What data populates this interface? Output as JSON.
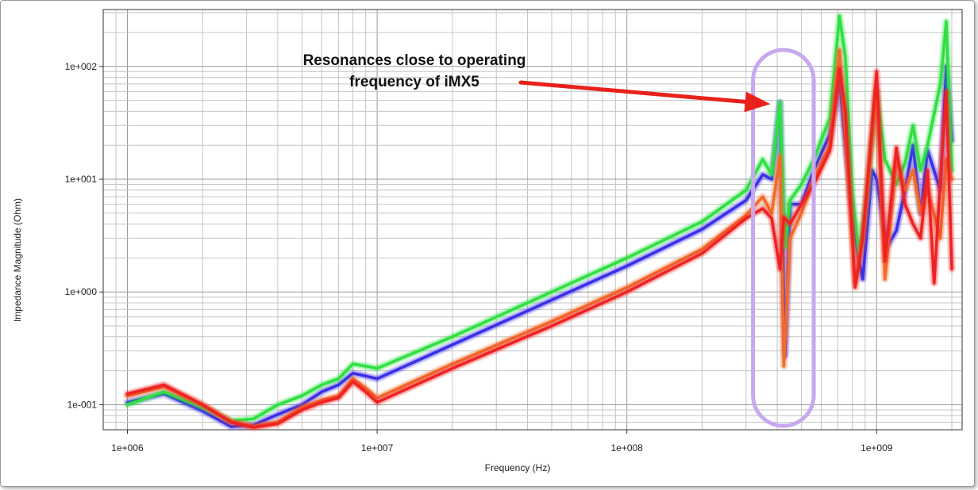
{
  "chart_data": {
    "type": "line",
    "title": "",
    "xlabel": "Frequency (Hz)",
    "ylabel": "Impedance Magnitude (Ohm)",
    "xscale": "log",
    "yscale": "log",
    "xlim": [
      800000,
      2200000000
    ],
    "ylim": [
      0.06,
      320
    ],
    "grid": true,
    "x_ticks": [
      {
        "value": 1000000,
        "label": "1e+006"
      },
      {
        "value": 10000000,
        "label": "1e+007"
      },
      {
        "value": 100000000,
        "label": "1e+008"
      },
      {
        "value": 1000000000,
        "label": "1e+009"
      }
    ],
    "y_ticks": [
      {
        "value": 0.1,
        "label": "1e-001"
      },
      {
        "value": 1,
        "label": "1e+000"
      },
      {
        "value": 10,
        "label": "1e+001"
      },
      {
        "value": 100,
        "label": "1e+002"
      }
    ],
    "annotation": {
      "lines": [
        "Resonances close to operating",
        "frequency of iMX5"
      ],
      "target": {
        "x": 410000000,
        "y": 48
      },
      "highlight_x": [
        320000000,
        560000000
      ],
      "highlight_y": [
        0.065,
        140
      ],
      "arrow_color": "#e8211b",
      "highlight_color": "#c8a8ee"
    },
    "series": [
      {
        "color": "#3a2fe8",
        "points": [
          [
            1000000,
            0.105
          ],
          [
            1400000,
            0.125
          ],
          [
            2000000,
            0.088
          ],
          [
            2600000,
            0.064
          ],
          [
            3200000,
            0.066
          ],
          [
            4000000,
            0.082
          ],
          [
            5000000,
            0.1
          ],
          [
            6000000,
            0.13
          ],
          [
            7000000,
            0.15
          ],
          [
            8000000,
            0.19
          ],
          [
            9000000,
            0.18
          ],
          [
            10000000,
            0.17
          ],
          [
            20000000,
            0.34
          ],
          [
            50000000,
            0.85
          ],
          [
            100000000,
            1.7
          ],
          [
            200000000,
            3.6
          ],
          [
            300000000,
            6.5
          ],
          [
            350000000,
            11
          ],
          [
            380000000,
            10
          ],
          [
            410000000,
            48
          ],
          [
            430000000,
            0.27
          ],
          [
            450000000,
            6
          ],
          [
            500000000,
            6
          ],
          [
            560000000,
            12
          ],
          [
            650000000,
            25
          ],
          [
            710000000,
            75
          ],
          [
            750000000,
            20
          ],
          [
            820000000,
            3
          ],
          [
            880000000,
            1.3
          ],
          [
            960000000,
            12
          ],
          [
            1000000000,
            10
          ],
          [
            1100000000,
            2.5
          ],
          [
            1200000000,
            3.5
          ],
          [
            1300000000,
            8
          ],
          [
            1400000000,
            20
          ],
          [
            1500000000,
            5
          ],
          [
            1600000000,
            18
          ],
          [
            1800000000,
            8
          ],
          [
            1900000000,
            100
          ],
          [
            2000000000,
            22
          ]
        ]
      },
      {
        "color": "#2fe043",
        "points": [
          [
            1000000,
            0.1
          ],
          [
            1400000,
            0.13
          ],
          [
            2000000,
            0.095
          ],
          [
            2600000,
            0.072
          ],
          [
            3200000,
            0.075
          ],
          [
            4000000,
            0.1
          ],
          [
            5000000,
            0.12
          ],
          [
            6000000,
            0.15
          ],
          [
            7000000,
            0.17
          ],
          [
            8000000,
            0.23
          ],
          [
            9000000,
            0.22
          ],
          [
            10000000,
            0.21
          ],
          [
            20000000,
            0.4
          ],
          [
            50000000,
            1.0
          ],
          [
            100000000,
            2.0
          ],
          [
            200000000,
            4.2
          ],
          [
            300000000,
            8
          ],
          [
            350000000,
            15
          ],
          [
            380000000,
            11
          ],
          [
            410000000,
            48
          ],
          [
            430000000,
            2.5
          ],
          [
            450000000,
            6.5
          ],
          [
            500000000,
            9
          ],
          [
            560000000,
            15
          ],
          [
            650000000,
            35
          ],
          [
            710000000,
            280
          ],
          [
            750000000,
            120
          ],
          [
            800000000,
            7
          ],
          [
            850000000,
            2.2
          ],
          [
            920000000,
            8
          ],
          [
            1000000000,
            60
          ],
          [
            1080000000,
            15
          ],
          [
            1200000000,
            9
          ],
          [
            1300000000,
            14
          ],
          [
            1400000000,
            30
          ],
          [
            1500000000,
            12
          ],
          [
            1600000000,
            20
          ],
          [
            1800000000,
            70
          ],
          [
            1900000000,
            250
          ],
          [
            2000000000,
            12
          ]
        ]
      },
      {
        "color": "#f26a2a",
        "points": [
          [
            1000000,
            0.12
          ],
          [
            1400000,
            0.145
          ],
          [
            2000000,
            0.1
          ],
          [
            2600000,
            0.071
          ],
          [
            3200000,
            0.064
          ],
          [
            4000000,
            0.07
          ],
          [
            5000000,
            0.095
          ],
          [
            6000000,
            0.11
          ],
          [
            7000000,
            0.12
          ],
          [
            8000000,
            0.17
          ],
          [
            9000000,
            0.14
          ],
          [
            10000000,
            0.115
          ],
          [
            20000000,
            0.23
          ],
          [
            50000000,
            0.55
          ],
          [
            100000000,
            1.1
          ],
          [
            200000000,
            2.4
          ],
          [
            300000000,
            4.8
          ],
          [
            350000000,
            7
          ],
          [
            380000000,
            5
          ],
          [
            410000000,
            16
          ],
          [
            425000000,
            0.22
          ],
          [
            450000000,
            3
          ],
          [
            500000000,
            5
          ],
          [
            560000000,
            10
          ],
          [
            650000000,
            20
          ],
          [
            710000000,
            140
          ],
          [
            750000000,
            25
          ],
          [
            820000000,
            1.2
          ],
          [
            880000000,
            3
          ],
          [
            960000000,
            25
          ],
          [
            1000000000,
            65
          ],
          [
            1080000000,
            1.3
          ],
          [
            1200000000,
            15
          ],
          [
            1300000000,
            8
          ],
          [
            1400000000,
            12
          ],
          [
            1500000000,
            5
          ],
          [
            1600000000,
            8
          ],
          [
            1800000000,
            3
          ],
          [
            1900000000,
            15
          ],
          [
            2000000000,
            10
          ]
        ]
      },
      {
        "color": "#ee2222",
        "points": [
          [
            1000000,
            0.125
          ],
          [
            1400000,
            0.15
          ],
          [
            2000000,
            0.1
          ],
          [
            2600000,
            0.07
          ],
          [
            3200000,
            0.063
          ],
          [
            4000000,
            0.068
          ],
          [
            5000000,
            0.09
          ],
          [
            6000000,
            0.105
          ],
          [
            7000000,
            0.115
          ],
          [
            8000000,
            0.16
          ],
          [
            9000000,
            0.13
          ],
          [
            10000000,
            0.105
          ],
          [
            20000000,
            0.21
          ],
          [
            50000000,
            0.5
          ],
          [
            100000000,
            1.0
          ],
          [
            200000000,
            2.2
          ],
          [
            300000000,
            4.5
          ],
          [
            350000000,
            5.5
          ],
          [
            380000000,
            4.5
          ],
          [
            410000000,
            1.6
          ],
          [
            425000000,
            4.6
          ],
          [
            450000000,
            4
          ],
          [
            500000000,
            6
          ],
          [
            560000000,
            9
          ],
          [
            650000000,
            18
          ],
          [
            710000000,
            95
          ],
          [
            750000000,
            40
          ],
          [
            820000000,
            1.1
          ],
          [
            880000000,
            3
          ],
          [
            960000000,
            30
          ],
          [
            1000000000,
            90
          ],
          [
            1080000000,
            1.9
          ],
          [
            1200000000,
            19
          ],
          [
            1300000000,
            6
          ],
          [
            1400000000,
            4
          ],
          [
            1500000000,
            3
          ],
          [
            1600000000,
            12
          ],
          [
            1700000000,
            1.2
          ],
          [
            1800000000,
            10
          ],
          [
            1900000000,
            60
          ],
          [
            2000000000,
            1.6
          ]
        ]
      }
    ]
  }
}
